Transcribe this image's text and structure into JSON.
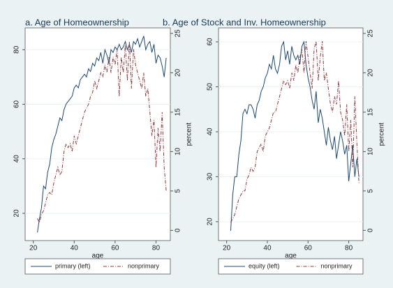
{
  "chart_data": [
    {
      "type": "line",
      "title": "a. Age of Homeownership",
      "xlabel": "age",
      "y2label": "percent",
      "x": [
        22,
        23,
        24,
        25,
        26,
        27,
        28,
        29,
        30,
        31,
        32,
        33,
        34,
        35,
        36,
        37,
        38,
        39,
        40,
        41,
        42,
        43,
        44,
        45,
        46,
        47,
        48,
        49,
        50,
        51,
        52,
        53,
        54,
        55,
        56,
        57,
        58,
        59,
        60,
        61,
        62,
        63,
        64,
        65,
        66,
        67,
        68,
        69,
        70,
        71,
        72,
        73,
        74,
        75,
        76,
        77,
        78,
        79,
        80,
        81,
        82,
        83,
        84,
        85
      ],
      "series": [
        {
          "name": "primary (left)",
          "color": "#1a476f",
          "dash": "solid",
          "values": [
            13,
            18,
            22,
            30,
            29,
            35,
            38,
            44,
            47,
            49,
            52,
            55,
            54,
            58,
            60,
            61,
            62,
            63,
            66,
            67,
            66,
            69,
            70,
            71,
            70,
            73,
            72,
            75,
            74,
            77,
            76,
            79,
            75,
            80,
            78,
            75,
            80,
            79,
            81,
            80,
            82,
            80,
            81,
            83,
            80,
            82,
            79,
            83,
            82,
            84,
            81,
            83,
            85,
            80,
            82,
            83,
            79,
            82,
            75,
            78,
            77,
            74,
            70,
            77
          ]
        },
        {
          "name": "nonprimary",
          "color": "#90353b",
          "dash": "dashdot",
          "axis": "y2",
          "values": [
            1.5,
            1,
            2,
            2.5,
            3.5,
            4.5,
            4.8,
            4.5,
            6,
            7,
            8,
            7,
            7.5,
            10,
            11,
            10.5,
            11,
            10,
            12,
            11,
            12,
            13,
            14,
            15,
            15.5,
            16,
            17,
            17.5,
            19,
            18,
            19,
            20,
            19.5,
            21,
            20,
            22,
            20,
            22,
            21,
            23,
            17,
            22,
            20,
            23.5,
            19,
            24,
            18,
            23,
            21,
            20,
            19,
            18,
            20,
            17,
            18,
            15,
            12,
            14,
            8,
            13,
            10,
            15,
            8,
            5
          ]
        }
      ],
      "xlim": [
        16,
        87
      ],
      "xticks": [
        20,
        40,
        60,
        80
      ],
      "ylim": [
        10,
        88
      ],
      "yticks": [
        20,
        40,
        60,
        80
      ],
      "y2lim": [
        -1.3,
        25.7
      ],
      "y2ticks": [
        0,
        5,
        10,
        15,
        20,
        25
      ]
    },
    {
      "type": "line",
      "title": "b. Age of Stock and Inv. Homeownership",
      "xlabel": "age",
      "y2label": "percent",
      "x": [
        22,
        23,
        24,
        25,
        26,
        27,
        28,
        29,
        30,
        31,
        32,
        33,
        34,
        35,
        36,
        37,
        38,
        39,
        40,
        41,
        42,
        43,
        44,
        45,
        46,
        47,
        48,
        49,
        50,
        51,
        52,
        53,
        54,
        55,
        56,
        57,
        58,
        59,
        60,
        61,
        62,
        63,
        64,
        65,
        66,
        67,
        68,
        69,
        70,
        71,
        72,
        73,
        74,
        75,
        76,
        77,
        78,
        79,
        80,
        81,
        82,
        83,
        84,
        85
      ],
      "series": [
        {
          "name": "equity (left)",
          "color": "#1a476f",
          "dash": "solid",
          "values": [
            18,
            26,
            30,
            30,
            35,
            38,
            44,
            45,
            44,
            46,
            46,
            45,
            43,
            46,
            47,
            49,
            50,
            52,
            53,
            55,
            54,
            57,
            54,
            53,
            55,
            59,
            60,
            56,
            58,
            55,
            59,
            57,
            56,
            57,
            55,
            59,
            60,
            55,
            52,
            50,
            47,
            45,
            49,
            42,
            45,
            43,
            40,
            37,
            41,
            38,
            36,
            39,
            34,
            37,
            40,
            38,
            35,
            37,
            29,
            33,
            37,
            30,
            34,
            30
          ]
        },
        {
          "name": "nonprimary",
          "color": "#90353b",
          "dash": "dashdot",
          "axis": "y2",
          "values": [
            1,
            1.5,
            2,
            3,
            4,
            4.5,
            5,
            5,
            6.5,
            7,
            8,
            7.5,
            8,
            10,
            10.5,
            11,
            10,
            12,
            12.5,
            13,
            14,
            15,
            15,
            16,
            17,
            18,
            19,
            18.5,
            19,
            18,
            20,
            19,
            21,
            20,
            22,
            23,
            20,
            24,
            22,
            20,
            18,
            23,
            24,
            19,
            22,
            24,
            19,
            20,
            18,
            16,
            15,
            17,
            16,
            19,
            15,
            14,
            12,
            16,
            10,
            14,
            8,
            17,
            11,
            6
          ]
        }
      ],
      "xlim": [
        16,
        87
      ],
      "xticks": [
        20,
        40,
        60,
        80
      ],
      "ylim": [
        15.8,
        63.1
      ],
      "yticks": [
        20,
        30,
        40,
        50,
        60
      ],
      "y2lim": [
        -1.3,
        25.7
      ],
      "y2ticks": [
        0,
        5,
        10,
        15,
        20,
        25
      ]
    }
  ]
}
